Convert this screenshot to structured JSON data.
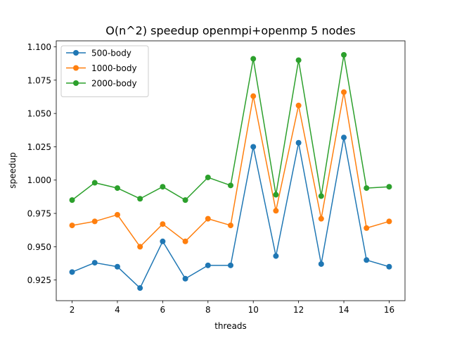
{
  "chart_data": {
    "type": "line",
    "title": "O(n^2) speedup openmpi+openmp 5 nodes",
    "xlabel": "threads",
    "ylabel": "speedup",
    "x": [
      2,
      3,
      4,
      5,
      6,
      7,
      8,
      9,
      10,
      11,
      12,
      13,
      14,
      15,
      16
    ],
    "xlim": [
      1.3,
      16.7
    ],
    "ylim": [
      0.9095,
      1.1045
    ],
    "xticks": [
      2,
      4,
      6,
      8,
      10,
      12,
      14,
      16
    ],
    "xtick_labels": [
      "2",
      "4",
      "6",
      "8",
      "10",
      "12",
      "14",
      "16"
    ],
    "yticks": [
      0.925,
      0.95,
      0.975,
      1.0,
      1.025,
      1.05,
      1.075,
      1.1
    ],
    "ytick_labels": [
      "0.925",
      "0.950",
      "0.975",
      "1.000",
      "1.025",
      "1.050",
      "1.075",
      "1.100"
    ],
    "grid": false,
    "legend": "upper-left",
    "series": [
      {
        "name": "500-body",
        "color": "#1f77b4",
        "values": [
          0.931,
          0.938,
          0.935,
          0.919,
          0.954,
          0.926,
          0.936,
          0.936,
          1.025,
          0.943,
          1.028,
          0.937,
          1.032,
          0.94,
          0.935
        ]
      },
      {
        "name": "1000-body",
        "color": "#ff7f0e",
        "values": [
          0.966,
          0.969,
          0.974,
          0.95,
          0.967,
          0.954,
          0.971,
          0.966,
          1.063,
          0.977,
          1.056,
          0.971,
          1.066,
          0.964,
          0.969
        ]
      },
      {
        "name": "2000-body",
        "color": "#2ca02c",
        "values": [
          0.985,
          0.998,
          0.994,
          0.986,
          0.995,
          0.985,
          1.002,
          0.996,
          1.091,
          0.989,
          1.09,
          0.988,
          1.094,
          0.994,
          0.995
        ]
      }
    ]
  }
}
